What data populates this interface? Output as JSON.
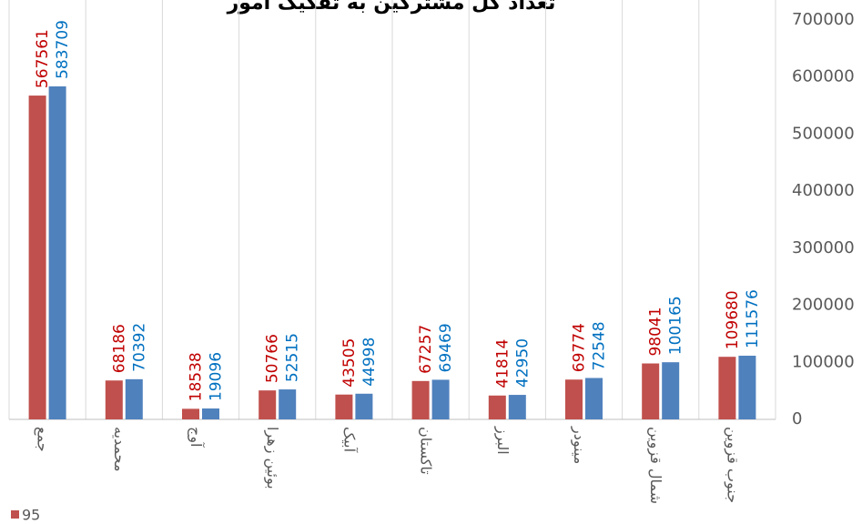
{
  "chart_data": {
    "type": "bar",
    "title": "تعداد کل مشترکین به تفکیک امور",
    "categories": [
      "جمع",
      "محمدیه",
      "آوج",
      "بوئین زهرا",
      "آبیک",
      "تاکستان",
      "البرز",
      "مینودر",
      "شمال قزوین",
      "جنوب قزوین"
    ],
    "series": [
      {
        "name": "95",
        "color": "#c0504d",
        "label_color": "#c00000",
        "values": [
          567561,
          68186,
          18538,
          50766,
          43505,
          67257,
          41814,
          69774,
          98041,
          109680
        ]
      },
      {
        "color": "#4f81bd",
        "label_color": "#0070c0",
        "values": [
          583709,
          70392,
          19096,
          52515,
          44998,
          69469,
          42950,
          72548,
          100165,
          111576
        ]
      }
    ],
    "ylim": [
      0,
      700000
    ],
    "yticks": [
      0,
      100000,
      200000,
      300000,
      400000,
      500000,
      600000,
      700000
    ],
    "y_axis_side": "right",
    "grid": "vertical",
    "legend": "bottom-left"
  }
}
